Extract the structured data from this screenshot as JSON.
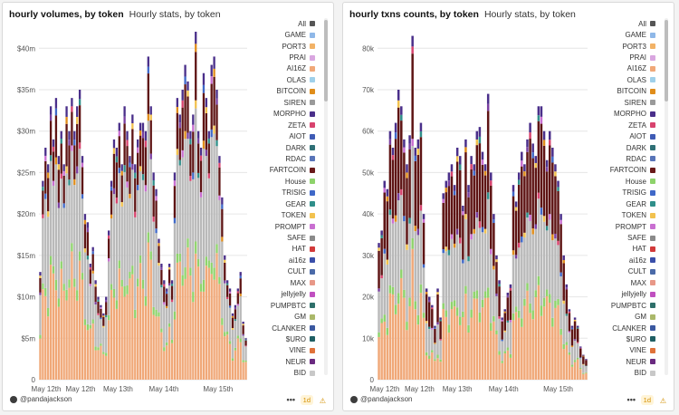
{
  "chart_data": [
    {
      "type": "bar",
      "stacked": true,
      "title": "hourly volumes, by token",
      "subtitle": "Hourly stats, by token",
      "x_ticks": [
        "May 12th",
        "May 12th",
        "May 13th",
        "May 14th",
        "May 15th"
      ],
      "y_ticks": [
        "0",
        "$5m",
        "$10m",
        "$15m",
        "$20m",
        "$25m",
        "$30m",
        "$35m",
        "$40m"
      ],
      "ylim": [
        0,
        42000000
      ],
      "x_range": [
        "May 11th 18:00",
        "May 15th 00:00"
      ],
      "approx_hourly_totals_usd_m": [
        13,
        24,
        28,
        26,
        33,
        29,
        34,
        27,
        30,
        26,
        33,
        30,
        34,
        30,
        33,
        35,
        27,
        20,
        19,
        14,
        16,
        12,
        10,
        9,
        8,
        10,
        18,
        24,
        29,
        28,
        31,
        26,
        33,
        30,
        27,
        32,
        26,
        29,
        31,
        31,
        30,
        39,
        33,
        25,
        23,
        17,
        14,
        12,
        11,
        14,
        12,
        25,
        34,
        32,
        35,
        38,
        36,
        30,
        32,
        42,
        30,
        28,
        37,
        34,
        30,
        38,
        39,
        35,
        27,
        22,
        15,
        12,
        11,
        8,
        9,
        11,
        13,
        7,
        5
      ],
      "grid": true,
      "legend_position": "right"
    },
    {
      "type": "bar",
      "stacked": true,
      "title": "hourly txns counts, by token",
      "subtitle": "Hourly stats, by token",
      "x_ticks": [
        "May 12th",
        "May 12th",
        "May 13th",
        "May 14th",
        "May 15th"
      ],
      "y_ticks": [
        "0",
        "10k",
        "20k",
        "30k",
        "40k",
        "50k",
        "60k",
        "70k",
        "80k"
      ],
      "ylim": [
        0,
        84000
      ],
      "x_range": [
        "May 11th 18:00",
        "May 15th 00:00"
      ],
      "approx_hourly_totals_k": [
        33,
        36,
        48,
        46,
        60,
        56,
        62,
        70,
        66,
        58,
        52,
        59,
        83,
        56,
        58,
        62,
        40,
        22,
        20,
        18,
        13,
        22,
        15,
        45,
        48,
        50,
        52,
        47,
        56,
        54,
        42,
        58,
        47,
        54,
        52,
        60,
        61,
        55,
        52,
        69,
        50,
        40,
        30,
        24,
        15,
        17,
        21,
        23,
        47,
        43,
        50,
        55,
        52,
        58,
        62,
        57,
        54,
        66,
        66,
        60,
        53,
        60,
        56,
        52,
        48,
        40,
        30,
        23,
        17,
        13,
        15,
        13,
        8,
        6,
        5
      ],
      "grid": true,
      "legend_position": "right"
    }
  ],
  "legend": [
    {
      "label": "All",
      "color": "#555555"
    },
    {
      "label": "GAME",
      "color": "#8fb8e8"
    },
    {
      "label": "PORT3",
      "color": "#f2b266"
    },
    {
      "label": "PRAI",
      "color": "#d9a6e0"
    },
    {
      "label": "AI16Z",
      "color": "#f0a878"
    },
    {
      "label": "OLAS",
      "color": "#9fd0ea"
    },
    {
      "label": "BITCOIN",
      "color": "#e08d1a"
    },
    {
      "label": "SIREN",
      "color": "#9a9a9a"
    },
    {
      "label": "MORPHO",
      "color": "#4a2f8a"
    },
    {
      "label": "ZETA",
      "color": "#d8436e"
    },
    {
      "label": "AIOT",
      "color": "#3f5bb5"
    },
    {
      "label": "DARK",
      "color": "#2f7076"
    },
    {
      "label": "RDAC",
      "color": "#5874b8"
    },
    {
      "label": "FARTCOIN",
      "color": "#6a1a1a"
    },
    {
      "label": "House",
      "color": "#8ed36b"
    },
    {
      "label": "TRISIG",
      "color": "#3f68c8"
    },
    {
      "label": "GEAR",
      "color": "#2f8f8a"
    },
    {
      "label": "TOKEN",
      "color": "#f2c24f"
    },
    {
      "label": "PROMPT",
      "color": "#c96fd1"
    },
    {
      "label": "SAFE",
      "color": "#8a8a8a"
    },
    {
      "label": "HAT",
      "color": "#d23a3a"
    },
    {
      "label": "ai16z",
      "color": "#3a4faa"
    },
    {
      "label": "CULT",
      "color": "#4a6aa8"
    },
    {
      "label": "MAX",
      "color": "#e89888"
    },
    {
      "label": "jellyjelly",
      "color": "#c050c0"
    },
    {
      "label": "PUMPBTC",
      "color": "#2e6f6a"
    },
    {
      "label": "GM",
      "color": "#aab86a"
    },
    {
      "label": "CLANKER",
      "color": "#3a58a0"
    },
    {
      "label": "$URO",
      "color": "#1f5f64"
    },
    {
      "label": "VINE",
      "color": "#e0723a"
    },
    {
      "label": "NEUR",
      "color": "#6a2a80"
    },
    {
      "label": "BID",
      "color": "#c8c8c8"
    }
  ],
  "author": "@pandajackson",
  "more_label": "•••",
  "badge": "1d",
  "warn_icon": "⚠",
  "colors": {
    "base_gray": "#b9b9b9",
    "orange": "#f0a878",
    "green": "#8ed36b",
    "maroon": "#5e1414",
    "purple": "#4a2f8a",
    "grid": "#e6e6e6"
  }
}
